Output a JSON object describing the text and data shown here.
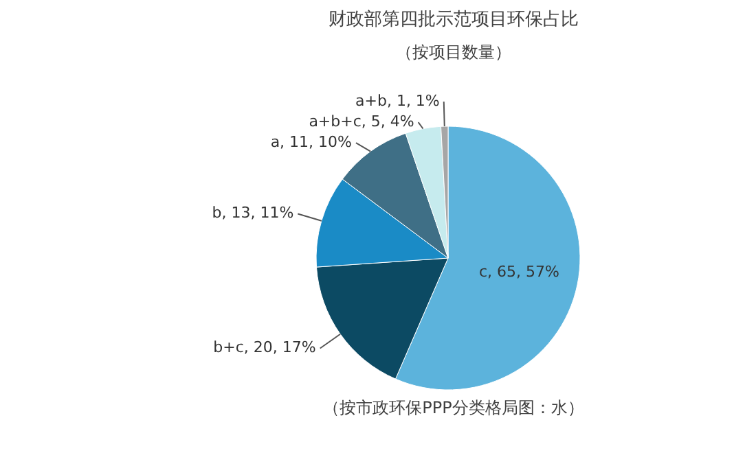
{
  "chart_data": {
    "type": "pie",
    "title": "财政部第四批示范项目环保占比",
    "subtitle": "（按项目数量）",
    "categories": [
      "c",
      "b+c",
      "b",
      "a",
      "a+b+c",
      "a+b"
    ],
    "values": [
      65,
      20,
      13,
      11,
      5,
      1
    ],
    "colors": [
      "#5cb3dc",
      "#0c4a63",
      "#1a8bc6",
      "#3f6f86",
      "#c6ebee",
      "#a6a6a6"
    ],
    "value_labels": [
      ", 65, 57%",
      ", 20, 17%",
      ", 13, 11%",
      ", 11, 10%",
      ", 5, 4%",
      ", 1, 1%"
    ],
    "annotations": [
      "（按市政环保PPP分类格局图：水）"
    ]
  }
}
